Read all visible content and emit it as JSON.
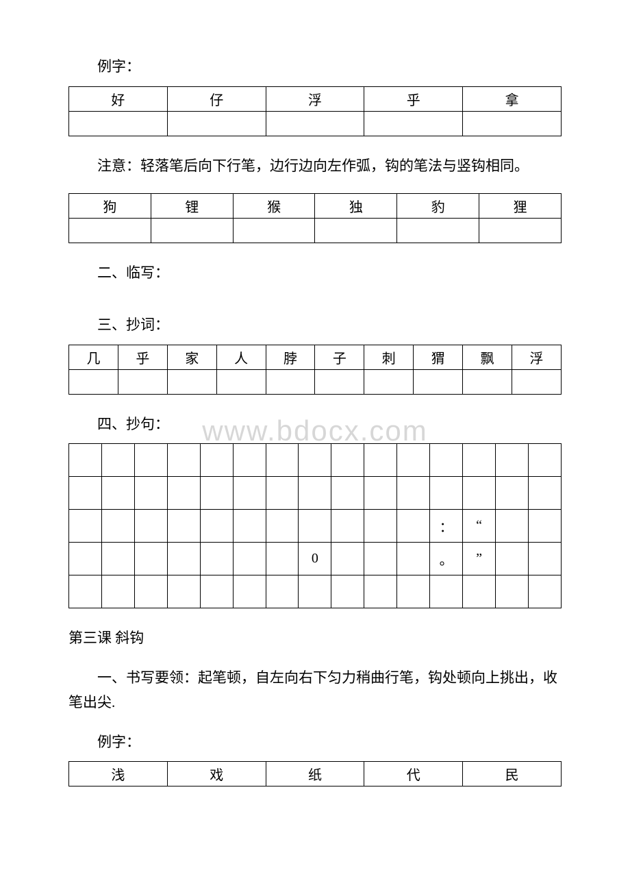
{
  "section1": {
    "lizi_label": "例字：",
    "table5_row": [
      "好",
      "仔",
      "浮",
      "乎",
      "拿"
    ],
    "note": "注意：轻落笔后向下行笔，边行边向左作弧，钩的笔法与竖钩相同。",
    "table6_row": [
      "狗",
      "锂",
      "猴",
      "独",
      "豹",
      "狸"
    ]
  },
  "section2": {
    "heading": "二、临写："
  },
  "section3": {
    "heading": "三、抄词：",
    "row10": [
      "几",
      "乎",
      "家",
      "人",
      "脖",
      "子",
      "刺",
      "猬",
      "飘",
      "浮"
    ]
  },
  "section4": {
    "heading": "四、抄句：",
    "grid": [
      [
        "",
        "",
        "",
        "",
        "",
        "",
        "",
        "",
        "",
        "",
        "",
        "",
        "",
        "",
        ""
      ],
      [
        "",
        "",
        "",
        "",
        "",
        "",
        "",
        "",
        "",
        "",
        "",
        "",
        "",
        "",
        ""
      ],
      [
        "",
        "",
        "",
        "",
        "",
        "",
        "",
        "",
        "",
        "",
        "",
        "：",
        "“",
        "",
        ""
      ],
      [
        "",
        "",
        "",
        "",
        "",
        "",
        "",
        "0",
        "",
        "",
        "",
        "。",
        "”",
        "",
        ""
      ],
      [
        "",
        "",
        "",
        "",
        "",
        "",
        "",
        "",
        "",
        "",
        "",
        "",
        "",
        "",
        ""
      ]
    ]
  },
  "lesson3": {
    "title": "第三课 斜钩",
    "point1": "一、书写要领：起笔顿，自左向右下匀力稍曲行笔，钩处顿向上挑出，收笔出尖.",
    "lizi_label": "例字：",
    "table5_row": [
      "浅",
      "戏",
      "纸",
      "代",
      "民"
    ]
  },
  "watermark": "www.bdocx.com"
}
